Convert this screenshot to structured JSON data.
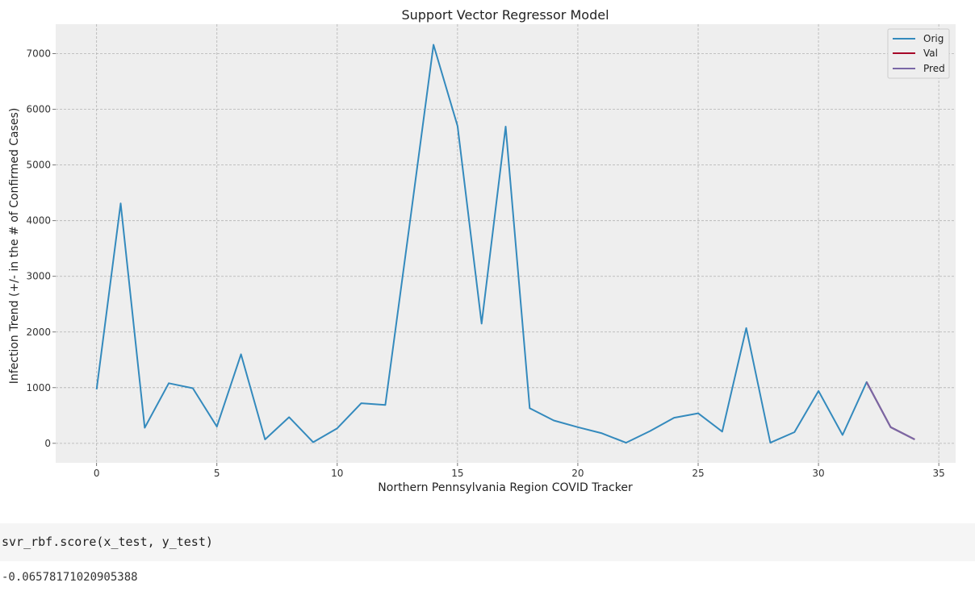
{
  "chart_data": {
    "type": "line",
    "title": "Support Vector Regressor Model",
    "xlabel": "Northern Pennsylvania Region COVID Tracker",
    "ylabel": "Infection Trend (+/- in the # of Confirmed Cases)",
    "xlim": [
      -1.7,
      35.7
    ],
    "ylim": [
      -350,
      7530
    ],
    "xticks": [
      0,
      5,
      10,
      15,
      20,
      25,
      30,
      35
    ],
    "yticks": [
      0,
      1000,
      2000,
      3000,
      4000,
      5000,
      6000,
      7000
    ],
    "grid": true,
    "legend_position": "top-right",
    "series": [
      {
        "name": "Orig",
        "color": "#348abd",
        "x": [
          0,
          1,
          2,
          3,
          4,
          5,
          6,
          7,
          8,
          9,
          10,
          11,
          12,
          13,
          14,
          15,
          16,
          17,
          18,
          19,
          20,
          21,
          22,
          23,
          24,
          25,
          26,
          27,
          28,
          29,
          30,
          31,
          32,
          33,
          34
        ],
        "y": [
          970,
          4310,
          280,
          1080,
          990,
          300,
          1600,
          70,
          470,
          20,
          270,
          720,
          690,
          3900,
          7160,
          5700,
          2150,
          5690,
          630,
          410,
          290,
          180,
          10,
          220,
          460,
          540,
          210,
          2070,
          10,
          200,
          940,
          150,
          1100,
          290,
          70
        ]
      },
      {
        "name": "Val",
        "color": "#a60628",
        "x": [
          32,
          33,
          34
        ],
        "y": [
          1100,
          290,
          70
        ]
      },
      {
        "name": "Pred",
        "color": "#7a68a6",
        "x": [
          32,
          33,
          34
        ],
        "y": [
          1100,
          290,
          70
        ]
      }
    ]
  },
  "code_cell": {
    "code": "svr_rbf.score(x_test, y_test)",
    "output": "-0.06578171020905388"
  }
}
